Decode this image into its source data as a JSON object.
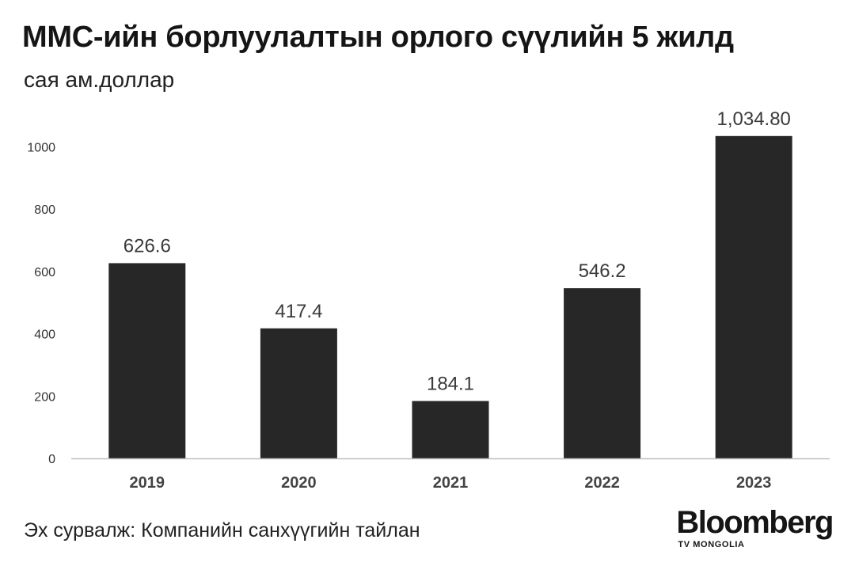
{
  "header": {
    "title": "MMC-ийн борлуулалтын орлого сүүлийн 5 жилд",
    "subtitle": "сая ам.доллар"
  },
  "footer": {
    "source": "Эх сурвалж: Компанийн санхүүгийн тайлан",
    "logo_main": "Bloomberg",
    "logo_sub": "TV MONGOLIA"
  },
  "colors": {
    "bar": "#272727",
    "axis": "#bfbfbf",
    "tick_text": "#333333",
    "label_text": "#3a3a3a",
    "category_text": "#444444"
  },
  "chart_data": {
    "type": "bar",
    "categories": [
      "2019",
      "2020",
      "2021",
      "2022",
      "2023"
    ],
    "values": [
      626.6,
      417.4,
      184.1,
      546.2,
      1034.8
    ],
    "data_labels": [
      "626.6",
      "417.4",
      "184.1",
      "546.2",
      "1,034.80"
    ],
    "title": "MMC-ийн борлуулалтын орлого сүүлийн 5 жилд",
    "subtitle": "сая ам.доллар",
    "xlabel": "",
    "ylabel": "",
    "ylim": [
      0,
      1000
    ],
    "yticks": [
      "0",
      "200",
      "400",
      "600",
      "800",
      "1000"
    ],
    "grid": false,
    "legend": "none"
  }
}
